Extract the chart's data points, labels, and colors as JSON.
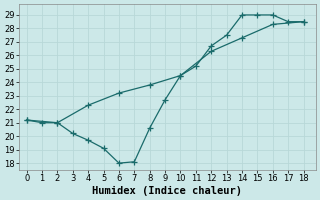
{
  "title": "",
  "xlabel": "Humidex (Indice chaleur)",
  "bg_color": "#cce8e8",
  "grid_color": "#b8d8d8",
  "line_color": "#1a6b6b",
  "line1_x": [
    0,
    1,
    2,
    3,
    4,
    5,
    6,
    7,
    8,
    9,
    10,
    11,
    12,
    13,
    14,
    15,
    16,
    17,
    18
  ],
  "line1_y": [
    21.2,
    21.0,
    21.0,
    20.2,
    19.7,
    19.1,
    18.0,
    18.1,
    20.6,
    22.7,
    24.5,
    25.2,
    26.7,
    27.5,
    29.0,
    29.0,
    29.0,
    28.5,
    28.5
  ],
  "line2_x": [
    0,
    2,
    4,
    6,
    8,
    10,
    12,
    14,
    16,
    18
  ],
  "line2_y": [
    21.2,
    21.0,
    22.3,
    23.2,
    23.8,
    24.5,
    26.3,
    27.3,
    28.3,
    28.5
  ],
  "xlim": [
    -0.5,
    18.8
  ],
  "ylim": [
    17.5,
    29.8
  ],
  "yticks": [
    18,
    19,
    20,
    21,
    22,
    23,
    24,
    25,
    26,
    27,
    28,
    29
  ],
  "xticks": [
    0,
    1,
    2,
    3,
    4,
    5,
    6,
    7,
    8,
    9,
    10,
    11,
    12,
    13,
    14,
    15,
    16,
    17,
    18
  ],
  "marker": "+",
  "markersize": 4,
  "linewidth": 0.9,
  "xlabel_fontsize": 7.5,
  "tick_fontsize": 6
}
